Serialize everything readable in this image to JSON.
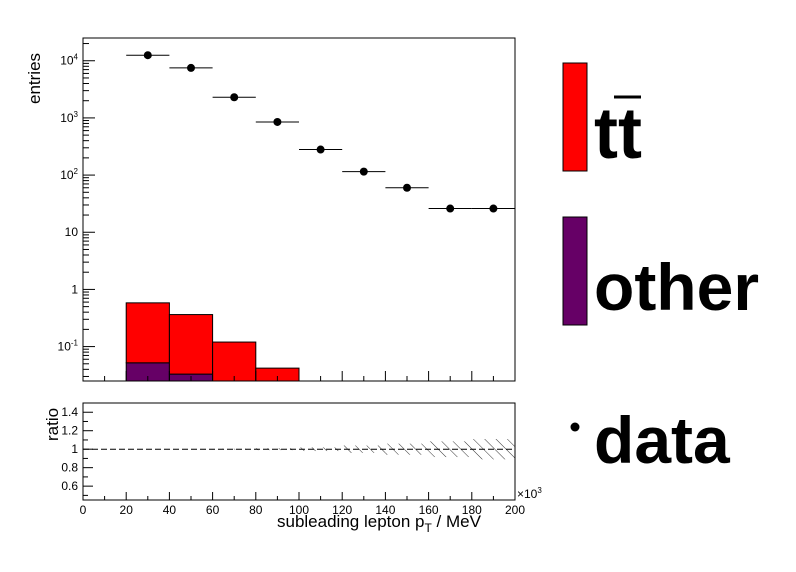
{
  "chart_data": [
    {
      "type": "bar",
      "panel": "main",
      "y_scale": "log",
      "ylabel": "entries",
      "xlim": [
        0,
        200
      ],
      "ylim": [
        0.025,
        25000
      ],
      "y_ticks": [
        {
          "value": 0.1,
          "base": "10",
          "exp": "-1"
        },
        {
          "value": 1,
          "base": "1",
          "exp": ""
        },
        {
          "value": 10,
          "base": "10",
          "exp": ""
        },
        {
          "value": 100,
          "base": "10",
          "exp": "2"
        },
        {
          "value": 1000,
          "base": "10",
          "exp": "3"
        },
        {
          "value": 10000,
          "base": "10",
          "exp": "4"
        }
      ],
      "bin_edges": [
        20,
        40,
        60,
        80,
        100,
        120,
        140,
        160,
        180,
        200
      ],
      "stack": [
        {
          "name": "other",
          "color": "#660066",
          "values": [
            0.052,
            0.033,
            0,
            0,
            0,
            0,
            0,
            0,
            0
          ]
        },
        {
          "name": "tt",
          "color": "#ff0000",
          "values": [
            0.53,
            0.33,
            0.12,
            0.042,
            0,
            0,
            0,
            0,
            0
          ]
        }
      ],
      "data_points": {
        "name": "data",
        "x": [
          30,
          50,
          70,
          90,
          110,
          130,
          150,
          170,
          190
        ],
        "y": [
          12500,
          7500,
          2300,
          850,
          280,
          115,
          60,
          26,
          26
        ]
      }
    },
    {
      "type": "line",
      "panel": "ratio",
      "ylabel": "ratio",
      "ylim": [
        0.45,
        1.5
      ],
      "y_ticks": [
        "0.6",
        "0.8",
        "1",
        "1.2",
        "1.4"
      ],
      "xlim": [
        0,
        200
      ],
      "x_ticks": [
        "0",
        "20",
        "40",
        "60",
        "80",
        "100",
        "120",
        "140",
        "160",
        "180",
        "200"
      ],
      "x_multiplier": {
        "base": "×10",
        "exp": "3"
      },
      "xlabel": {
        "main": "subleading lepton p",
        "sub": "T",
        "after": " / MeV"
      },
      "reference_value": 1,
      "uncertainty_band_halfwidth": [
        0.0,
        0.0,
        0.005,
        0.01,
        0.02,
        0.04,
        0.06,
        0.085,
        0.11
      ]
    }
  ],
  "legend": [
    {
      "key": "tt",
      "label": "tt",
      "overline": true,
      "color": "#ff0000",
      "style": "box"
    },
    {
      "key": "other",
      "label": "other",
      "color": "#660066",
      "style": "box"
    },
    {
      "key": "data",
      "label": "data",
      "color": "#000000",
      "style": "marker"
    }
  ]
}
